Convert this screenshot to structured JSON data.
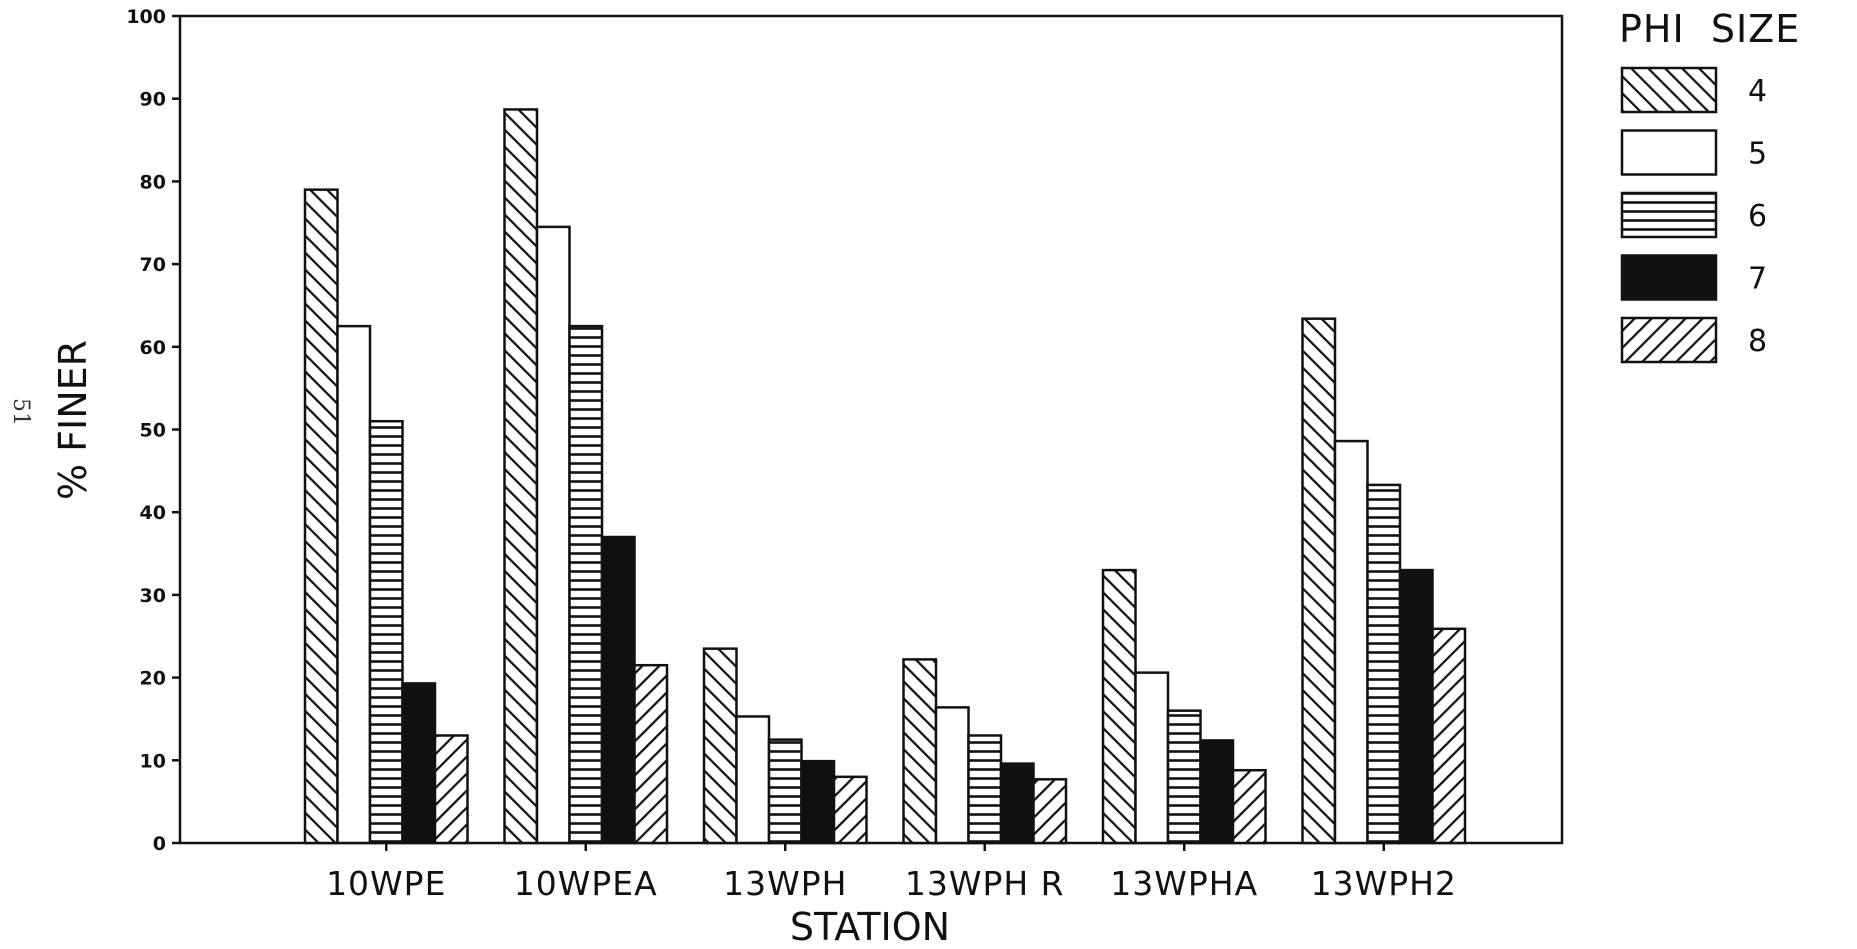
{
  "page_number": "51",
  "chart_data": {
    "type": "bar",
    "title": "",
    "xlabel": "STATION",
    "ylabel": "% FINER",
    "ylim": [
      0,
      100
    ],
    "yticks": [
      0,
      10,
      20,
      30,
      40,
      50,
      60,
      70,
      80,
      90,
      100
    ],
    "grid": false,
    "legend_title": "PHI  SIZE",
    "legend_position": "top-right",
    "categories": [
      "10WPE",
      "10WPEA",
      "13WPH",
      "13WPH  R",
      "13WPHA",
      "13WPH2"
    ],
    "series": [
      {
        "name": "4",
        "fill": "hatch-forward",
        "values": [
          79,
          88.7,
          23.5,
          22.2,
          33,
          63.4
        ]
      },
      {
        "name": "5",
        "fill": "white",
        "values": [
          62.5,
          74.5,
          15.3,
          16.4,
          20.6,
          48.6
        ]
      },
      {
        "name": "6",
        "fill": "hatch-horizontal",
        "values": [
          51,
          62.5,
          12.5,
          13,
          16,
          43.3
        ]
      },
      {
        "name": "7",
        "fill": "solid-black",
        "values": [
          19.3,
          37,
          9.9,
          9.6,
          12.4,
          33
        ]
      },
      {
        "name": "8",
        "fill": "hatch-back",
        "values": [
          13,
          21.5,
          8,
          7.7,
          8.8,
          25.9
        ]
      }
    ]
  }
}
